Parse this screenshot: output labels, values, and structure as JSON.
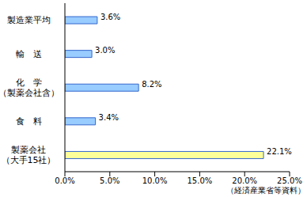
{
  "chart_data": {
    "type": "bar",
    "orientation": "horizontal",
    "categories": [
      "製造業平均",
      "輸　送",
      "化　学\n（製薬会社含）",
      "食　料",
      "製薬会社\n（大手15社）"
    ],
    "values": [
      3.6,
      3.0,
      8.2,
      3.4,
      22.1
    ],
    "value_labels": [
      "3.6%",
      "3.0%",
      "8.2%",
      "3.4%",
      "22.1%"
    ],
    "data_labels": true,
    "colors": [
      "#99ccff",
      "#99ccff",
      "#99ccff",
      "#99ccff",
      "#ffff99"
    ],
    "xlim": [
      0,
      25
    ],
    "xticks": [
      {
        "value": 0,
        "label": "0.0%"
      },
      {
        "value": 5,
        "label": "5.0%"
      },
      {
        "value": 10,
        "label": "10.0%"
      },
      {
        "value": 15,
        "label": "15.0%"
      },
      {
        "value": 20,
        "label": "20.0%"
      },
      {
        "value": 25,
        "label": "25.0%"
      }
    ],
    "grid": false,
    "annotation": "（経済産業省等資料）"
  }
}
